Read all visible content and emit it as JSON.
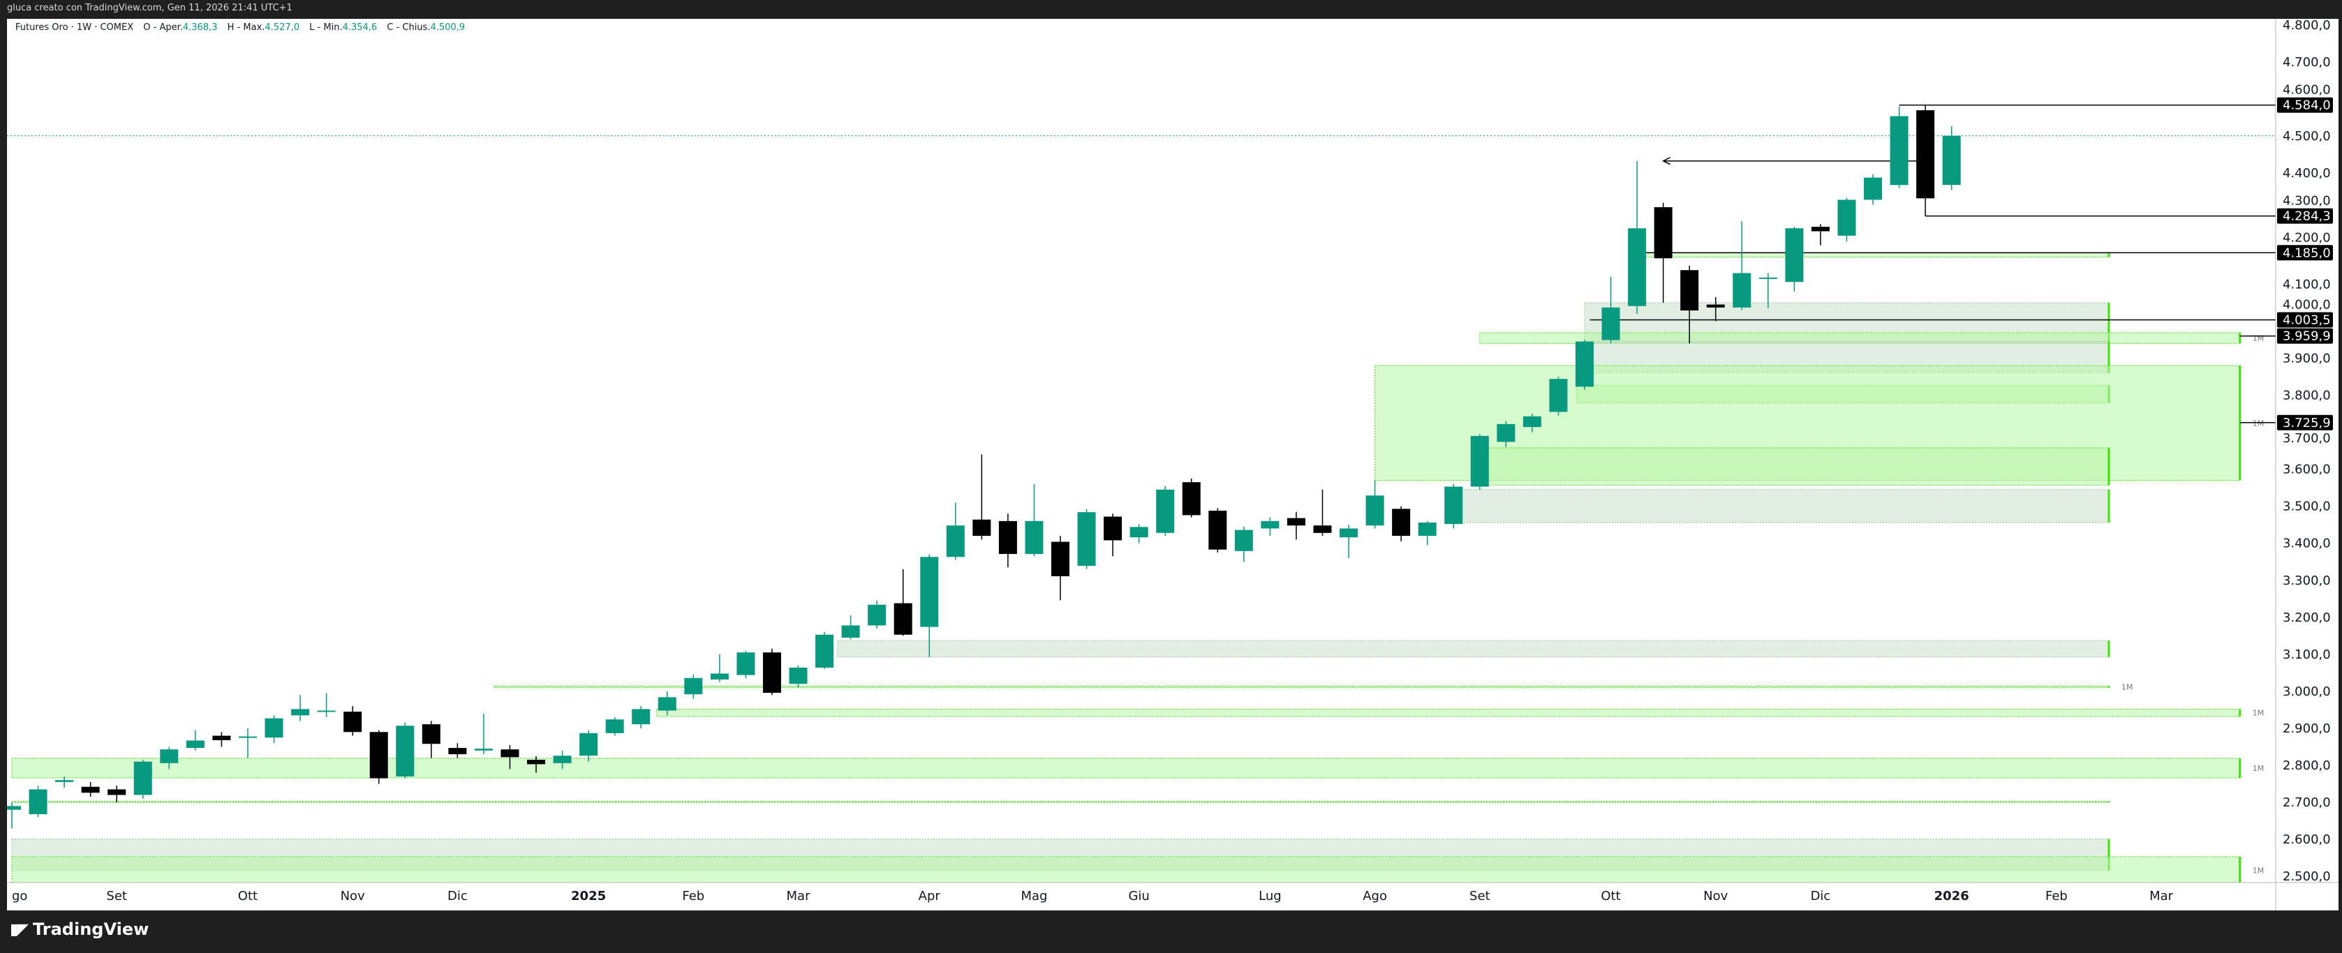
{
  "topbar": {
    "text": "gluca creato con TradingView.com, Gen 11, 2026 21:41 UTC+1"
  },
  "legend": {
    "symbol": "Futures Oro · 1W · COMEX",
    "o_label": "O - Aper.",
    "o": "4.368,3",
    "h_label": "H - Max.",
    "h": "4.527,0",
    "l_label": "L - Min.",
    "l": "4.354,6",
    "c_label": "C - Chius.",
    "c": "4.500,9"
  },
  "footer": {
    "brand": "TradingView",
    "logo": "TV"
  },
  "colors": {
    "up": "#089981",
    "down": "#000000",
    "zone_green": "#b7f5a6",
    "zone_grey": "#c8e0c8",
    "zone_edge": "#39e600"
  },
  "chart_data": {
    "type": "candlestick",
    "title": "Futures Oro · 1W · COMEX",
    "ylim": [
      2480,
      4820
    ],
    "y_ticks": [
      "4.800,0",
      "4.700,0",
      "4.600,0",
      "4.500,0",
      "4.400,0",
      "4.300,0",
      "4.200,0",
      "4.100,0",
      "4.000,0",
      "3.900,0",
      "3.800,0",
      "3.700,0",
      "3.600,0",
      "3.500,0",
      "3.400,0",
      "3.300,0",
      "3.200,0",
      "3.100,0",
      "3.000,0",
      "2.900,0",
      "2.800,0",
      "2.700,0",
      "2.600,0",
      "2.500,0"
    ],
    "x_labels": [
      {
        "label": "go",
        "index": 0
      },
      {
        "label": "Set",
        "index": 4
      },
      {
        "label": "Ott",
        "index": 9
      },
      {
        "label": "Nov",
        "index": 13
      },
      {
        "label": "Dic",
        "index": 17
      },
      {
        "label": "2025",
        "index": 22,
        "bold": true
      },
      {
        "label": "Feb",
        "index": 26
      },
      {
        "label": "Mar",
        "index": 30
      },
      {
        "label": "Apr",
        "index": 35
      },
      {
        "label": "Mag",
        "index": 39
      },
      {
        "label": "Giu",
        "index": 43
      },
      {
        "label": "Lug",
        "index": 48
      },
      {
        "label": "Ago",
        "index": 52
      },
      {
        "label": "Set",
        "index": 56
      },
      {
        "label": "Ott",
        "index": 61
      },
      {
        "label": "Nov",
        "index": 65
      },
      {
        "label": "Dic",
        "index": 69
      },
      {
        "label": "2026",
        "index": 74,
        "bold": true
      },
      {
        "label": "Feb",
        "index": 78
      },
      {
        "label": "Mar",
        "index": 82
      }
    ],
    "candles": [
      [
        2680,
        2700,
        2630,
        2690
      ],
      [
        2668,
        2745,
        2660,
        2735
      ],
      [
        2755,
        2770,
        2740,
        2760
      ],
      [
        2742,
        2755,
        2715,
        2726
      ],
      [
        2735,
        2745,
        2700,
        2720
      ],
      [
        2720,
        2815,
        2710,
        2810
      ],
      [
        2806,
        2850,
        2790,
        2843
      ],
      [
        2847,
        2895,
        2840,
        2867
      ],
      [
        2880,
        2890,
        2850,
        2868
      ],
      [
        2876,
        2900,
        2820,
        2878
      ],
      [
        2875,
        2935,
        2860,
        2927
      ],
      [
        2935,
        2990,
        2920,
        2952
      ],
      [
        2946,
        2995,
        2930,
        2948
      ],
      [
        2945,
        2960,
        2880,
        2890
      ],
      [
        2890,
        2895,
        2750,
        2765
      ],
      [
        2770,
        2915,
        2765,
        2907
      ],
      [
        2911,
        2920,
        2820,
        2858
      ],
      [
        2847,
        2860,
        2820,
        2830
      ],
      [
        2840,
        2940,
        2830,
        2845
      ],
      [
        2843,
        2855,
        2790,
        2822
      ],
      [
        2815,
        2825,
        2780,
        2803
      ],
      [
        2806,
        2840,
        2790,
        2826
      ],
      [
        2826,
        2895,
        2810,
        2887
      ],
      [
        2887,
        2930,
        2880,
        2924
      ],
      [
        2911,
        2960,
        2900,
        2952
      ],
      [
        2948,
        3000,
        2935,
        2984
      ],
      [
        2992,
        3045,
        2980,
        3036
      ],
      [
        3032,
        3100,
        3025,
        3048
      ],
      [
        3044,
        3110,
        3035,
        3105
      ],
      [
        3105,
        3115,
        2990,
        2996
      ],
      [
        3020,
        3070,
        3010,
        3064
      ],
      [
        3064,
        3160,
        3060,
        3153
      ],
      [
        3145,
        3205,
        3140,
        3178
      ],
      [
        3178,
        3245,
        3170,
        3234
      ],
      [
        3238,
        3330,
        3150,
        3153
      ],
      [
        3174,
        3370,
        3093,
        3363
      ],
      [
        3363,
        3510,
        3355,
        3448
      ],
      [
        3464,
        3640,
        3410,
        3420
      ],
      [
        3460,
        3480,
        3335,
        3371
      ],
      [
        3371,
        3560,
        3365,
        3460
      ],
      [
        3404,
        3420,
        3246,
        3311
      ],
      [
        3339,
        3492,
        3330,
        3484
      ],
      [
        3472,
        3480,
        3365,
        3408
      ],
      [
        3416,
        3452,
        3400,
        3444
      ],
      [
        3428,
        3555,
        3420,
        3545
      ],
      [
        3565,
        3575,
        3470,
        3476
      ],
      [
        3488,
        3495,
        3375,
        3383
      ],
      [
        3379,
        3445,
        3350,
        3436
      ],
      [
        3440,
        3470,
        3420,
        3460
      ],
      [
        3468,
        3485,
        3410,
        3448
      ],
      [
        3448,
        3545,
        3420,
        3428
      ],
      [
        3416,
        3450,
        3360,
        3440
      ],
      [
        3448,
        3570,
        3440,
        3529
      ],
      [
        3493,
        3500,
        3405,
        3420
      ],
      [
        3420,
        3460,
        3395,
        3456
      ],
      [
        3452,
        3560,
        3440,
        3553
      ],
      [
        3553,
        3695,
        3545,
        3690
      ],
      [
        3674,
        3730,
        3660,
        3722
      ],
      [
        3714,
        3750,
        3700,
        3743
      ],
      [
        3755,
        3850,
        3745,
        3844
      ],
      [
        3823,
        3950,
        3815,
        3945
      ],
      [
        3949,
        4120,
        3940,
        4037
      ],
      [
        4041,
        4433,
        4020,
        4251
      ],
      [
        4308,
        4320,
        4050,
        4170
      ],
      [
        4138,
        4150,
        3940,
        4029
      ],
      [
        4045,
        4065,
        4000,
        4037
      ],
      [
        4037,
        4270,
        4030,
        4130
      ],
      [
        4118,
        4130,
        4035,
        4118
      ],
      [
        4106,
        4255,
        4080,
        4251
      ],
      [
        4255,
        4262,
        4205,
        4243
      ],
      [
        4231,
        4333,
        4215,
        4328
      ],
      [
        4328,
        4397,
        4315,
        4388
      ],
      [
        4368,
        4580,
        4360,
        4554
      ],
      [
        4570,
        4584,
        4284,
        4332
      ],
      [
        4368.3,
        4527,
        4354.6,
        4500.9
      ]
    ],
    "zones": [
      {
        "from": 62,
        "to": 80,
        "top": 4185,
        "bottom": 4173,
        "kind": "green"
      },
      {
        "from": 60,
        "to": 80,
        "top": 4050,
        "bottom": 3940,
        "kind": "grey"
      },
      {
        "from": 56,
        "to": 85,
        "top": 3969,
        "bottom": 3940,
        "kind": "green",
        "tf": "1M"
      },
      {
        "from": 60,
        "to": 80,
        "top": 3945,
        "bottom": 3860,
        "kind": "grey"
      },
      {
        "from": 59.7,
        "to": 80,
        "top": 3827,
        "bottom": 3779,
        "kind": "green"
      },
      {
        "from": 52,
        "to": 85,
        "top": 3880,
        "bottom": 3570,
        "kind": "green",
        "tf": "1M"
      },
      {
        "from": 56,
        "to": 80,
        "top": 3658,
        "bottom": 3557,
        "kind": "green"
      },
      {
        "from": 55,
        "to": 80,
        "top": 3545,
        "bottom": 3456,
        "kind": "grey"
      },
      {
        "from": 31.5,
        "to": 80,
        "top": 3137,
        "bottom": 3093,
        "kind": "grey"
      },
      {
        "from": 18.4,
        "to": 80,
        "top": 3014,
        "bottom": 3010,
        "kind": "green",
        "tf": "1M"
      },
      {
        "from": 24.6,
        "to": 85,
        "top": 2952,
        "bottom": 2932,
        "kind": "green",
        "tf": "1M"
      },
      {
        "from": 0,
        "to": 85,
        "top": 2819,
        "bottom": 2766,
        "kind": "green",
        "tf": "1M"
      },
      {
        "from": 0,
        "to": 80,
        "top": 2703,
        "bottom": 2700,
        "kind": "green"
      },
      {
        "from": 0,
        "to": 80,
        "top": 2601,
        "bottom": 2516,
        "kind": "grey"
      },
      {
        "from": 0,
        "to": 85,
        "top": 2553,
        "bottom": 2480,
        "kind": "green",
        "tf": "1M"
      }
    ],
    "levels": [
      {
        "price": 4584.0,
        "label": "4.584,0",
        "from": 72
      },
      {
        "price": 4284.3,
        "label": "4.284,3",
        "from": 73
      },
      {
        "price": 4185.0,
        "label": "4.185,0",
        "from": 62
      },
      {
        "price": 4003.5,
        "label": "4.003,5",
        "from": 60.2
      },
      {
        "price": 3959.9,
        "label": "3.959,9",
        "from": 85
      },
      {
        "price": 3725.9,
        "label": "3.725,9",
        "from": 85
      }
    ],
    "arrow_line": {
      "price": 4433,
      "from": 63,
      "to": 73
    },
    "last_price": 4500.9
  }
}
